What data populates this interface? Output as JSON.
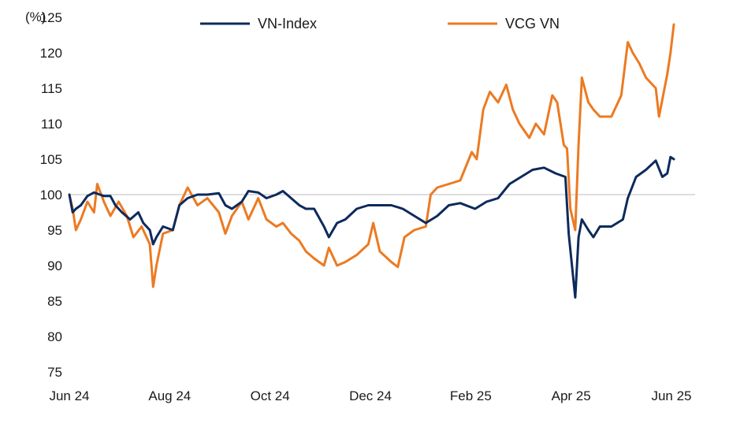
{
  "chart_data": {
    "type": "line",
    "ylabel": "(%)",
    "ylim": [
      75,
      125
    ],
    "yticks": [
      75,
      80,
      85,
      90,
      95,
      100,
      105,
      110,
      115,
      120,
      125
    ],
    "xticks": [
      "Jun 24",
      "Aug 24",
      "Oct 24",
      "Dec 24",
      "Feb 25",
      "Apr 25",
      "Jun 25"
    ],
    "x_range": [
      "2024-06-03",
      "2025-06-06"
    ],
    "reference_line": 100,
    "legend_position": "top",
    "series": [
      {
        "name": "VN-Index",
        "color": "#0d2a5c",
        "points": [
          [
            "2024-06-03",
            100.0
          ],
          [
            "2024-06-05",
            97.5
          ],
          [
            "2024-06-07",
            98.0
          ],
          [
            "2024-06-10",
            98.5
          ],
          [
            "2024-06-14",
            99.8
          ],
          [
            "2024-06-18",
            100.3
          ],
          [
            "2024-06-24",
            99.8
          ],
          [
            "2024-06-28",
            99.8
          ],
          [
            "2024-07-01",
            98.5
          ],
          [
            "2024-07-05",
            97.5
          ],
          [
            "2024-07-10",
            96.5
          ],
          [
            "2024-07-15",
            97.5
          ],
          [
            "2024-07-18",
            96.0
          ],
          [
            "2024-07-22",
            95.0
          ],
          [
            "2024-07-24",
            93.0
          ],
          [
            "2024-07-26",
            94.0
          ],
          [
            "2024-07-30",
            95.5
          ],
          [
            "2024-08-05",
            95.0
          ],
          [
            "2024-08-09",
            98.5
          ],
          [
            "2024-08-14",
            99.5
          ],
          [
            "2024-08-20",
            100.0
          ],
          [
            "2024-08-26",
            100.0
          ],
          [
            "2024-09-02",
            100.2
          ],
          [
            "2024-09-06",
            98.5
          ],
          [
            "2024-09-10",
            98.0
          ],
          [
            "2024-09-16",
            99.0
          ],
          [
            "2024-09-20",
            100.5
          ],
          [
            "2024-09-26",
            100.3
          ],
          [
            "2024-10-01",
            99.5
          ],
          [
            "2024-10-07",
            100.0
          ],
          [
            "2024-10-11",
            100.5
          ],
          [
            "2024-10-16",
            99.5
          ],
          [
            "2024-10-21",
            98.5
          ],
          [
            "2024-10-25",
            98.0
          ],
          [
            "2024-10-30",
            98.0
          ],
          [
            "2024-11-05",
            95.5
          ],
          [
            "2024-11-08",
            94.0
          ],
          [
            "2024-11-13",
            96.0
          ],
          [
            "2024-11-18",
            96.5
          ],
          [
            "2024-11-25",
            98.0
          ],
          [
            "2024-12-02",
            98.5
          ],
          [
            "2024-12-09",
            98.5
          ],
          [
            "2024-12-16",
            98.5
          ],
          [
            "2024-12-23",
            98.0
          ],
          [
            "2024-12-30",
            97.0
          ],
          [
            "2025-01-06",
            96.0
          ],
          [
            "2025-01-13",
            97.0
          ],
          [
            "2025-01-20",
            98.5
          ],
          [
            "2025-01-27",
            98.8
          ],
          [
            "2025-02-05",
            98.0
          ],
          [
            "2025-02-12",
            99.0
          ],
          [
            "2025-02-19",
            99.5
          ],
          [
            "2025-02-26",
            101.5
          ],
          [
            "2025-03-05",
            102.5
          ],
          [
            "2025-03-12",
            103.5
          ],
          [
            "2025-03-19",
            103.8
          ],
          [
            "2025-03-26",
            103.0
          ],
          [
            "2025-04-01",
            102.5
          ],
          [
            "2025-04-03",
            94.5
          ],
          [
            "2025-04-07",
            85.5
          ],
          [
            "2025-04-09",
            94.0
          ],
          [
            "2025-04-11",
            96.5
          ],
          [
            "2025-04-15",
            95.0
          ],
          [
            "2025-04-18",
            94.0
          ],
          [
            "2025-04-22",
            95.5
          ],
          [
            "2025-04-29",
            95.5
          ],
          [
            "2025-05-06",
            96.5
          ],
          [
            "2025-05-09",
            99.5
          ],
          [
            "2025-05-14",
            102.5
          ],
          [
            "2025-05-20",
            103.5
          ],
          [
            "2025-05-26",
            104.8
          ],
          [
            "2025-05-30",
            102.5
          ],
          [
            "2025-06-02",
            103.0
          ],
          [
            "2025-06-04",
            105.3
          ],
          [
            "2025-06-06",
            105.0
          ]
        ]
      },
      {
        "name": "VCG VN",
        "color": "#ec7a22",
        "points": [
          [
            "2024-06-03",
            100.0
          ],
          [
            "2024-06-05",
            98.0
          ],
          [
            "2024-06-07",
            95.0
          ],
          [
            "2024-06-10",
            96.5
          ],
          [
            "2024-06-14",
            99.0
          ],
          [
            "2024-06-18",
            97.5
          ],
          [
            "2024-06-20",
            101.5
          ],
          [
            "2024-06-24",
            99.0
          ],
          [
            "2024-06-28",
            97.0
          ],
          [
            "2024-07-03",
            99.0
          ],
          [
            "2024-07-08",
            97.0
          ],
          [
            "2024-07-12",
            94.0
          ],
          [
            "2024-07-17",
            95.5
          ],
          [
            "2024-07-22",
            93.0
          ],
          [
            "2024-07-24",
            87.0
          ],
          [
            "2024-07-26",
            90.0
          ],
          [
            "2024-07-30",
            94.5
          ],
          [
            "2024-08-05",
            95.0
          ],
          [
            "2024-08-09",
            98.5
          ],
          [
            "2024-08-14",
            101.0
          ],
          [
            "2024-08-20",
            98.5
          ],
          [
            "2024-08-26",
            99.5
          ],
          [
            "2024-09-02",
            97.5
          ],
          [
            "2024-09-06",
            94.5
          ],
          [
            "2024-09-10",
            97.0
          ],
          [
            "2024-09-16",
            99.0
          ],
          [
            "2024-09-20",
            96.5
          ],
          [
            "2024-09-26",
            99.5
          ],
          [
            "2024-10-01",
            96.5
          ],
          [
            "2024-10-07",
            95.5
          ],
          [
            "2024-10-11",
            96.0
          ],
          [
            "2024-10-16",
            94.5
          ],
          [
            "2024-10-21",
            93.5
          ],
          [
            "2024-10-25",
            92.0
          ],
          [
            "2024-10-30",
            91.0
          ],
          [
            "2024-11-05",
            90.0
          ],
          [
            "2024-11-08",
            92.5
          ],
          [
            "2024-11-13",
            90.0
          ],
          [
            "2024-11-18",
            90.5
          ],
          [
            "2024-11-25",
            91.5
          ],
          [
            "2024-12-02",
            93.0
          ],
          [
            "2024-12-05",
            96.0
          ],
          [
            "2024-12-09",
            92.0
          ],
          [
            "2024-12-16",
            90.5
          ],
          [
            "2024-12-20",
            89.8
          ],
          [
            "2024-12-24",
            94.0
          ],
          [
            "2024-12-30",
            95.0
          ],
          [
            "2025-01-06",
            95.5
          ],
          [
            "2025-01-09",
            100.0
          ],
          [
            "2025-01-13",
            101.0
          ],
          [
            "2025-01-20",
            101.5
          ],
          [
            "2025-01-27",
            102.0
          ],
          [
            "2025-02-03",
            106.0
          ],
          [
            "2025-02-06",
            105.0
          ],
          [
            "2025-02-10",
            112.0
          ],
          [
            "2025-02-14",
            114.5
          ],
          [
            "2025-02-19",
            113.0
          ],
          [
            "2025-02-24",
            115.5
          ],
          [
            "2025-02-28",
            112.0
          ],
          [
            "2025-03-04",
            110.0
          ],
          [
            "2025-03-10",
            108.0
          ],
          [
            "2025-03-14",
            110.0
          ],
          [
            "2025-03-19",
            108.5
          ],
          [
            "2025-03-24",
            114.0
          ],
          [
            "2025-03-27",
            113.0
          ],
          [
            "2025-03-31",
            107.0
          ],
          [
            "2025-04-02",
            106.5
          ],
          [
            "2025-04-04",
            98.0
          ],
          [
            "2025-04-07",
            95.0
          ],
          [
            "2025-04-09",
            107.0
          ],
          [
            "2025-04-11",
            116.5
          ],
          [
            "2025-04-15",
            113.0
          ],
          [
            "2025-04-18",
            112.0
          ],
          [
            "2025-04-22",
            111.0
          ],
          [
            "2025-04-29",
            111.0
          ],
          [
            "2025-05-05",
            114.0
          ],
          [
            "2025-05-09",
            121.5
          ],
          [
            "2025-05-12",
            120.0
          ],
          [
            "2025-05-16",
            118.5
          ],
          [
            "2025-05-20",
            116.5
          ],
          [
            "2025-05-26",
            115.0
          ],
          [
            "2025-05-28",
            111.0
          ],
          [
            "2025-06-02",
            117.0
          ],
          [
            "2025-06-04",
            120.0
          ],
          [
            "2025-06-06",
            124.0
          ]
        ]
      }
    ]
  }
}
